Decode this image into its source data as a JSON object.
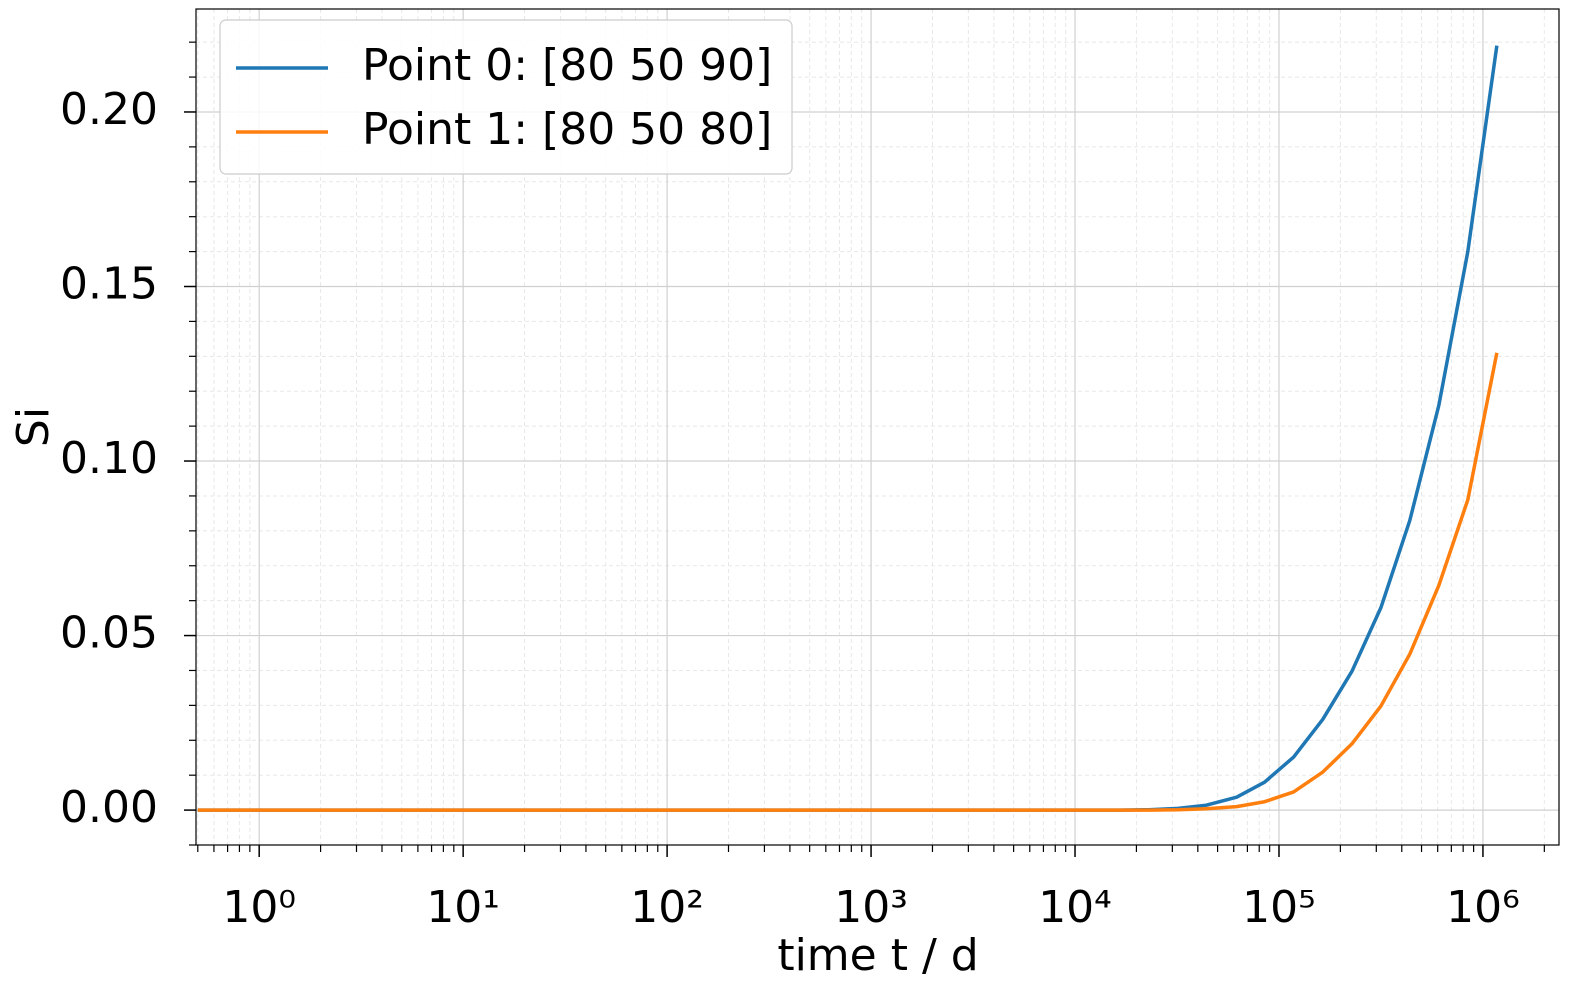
{
  "chart_data": {
    "type": "line",
    "xlabel": "time t / d",
    "ylabel": "Si",
    "x": [
      0.5,
      16600,
      23000,
      32000,
      44000,
      62000,
      85000,
      118000,
      164000,
      228000,
      316000,
      438000,
      608000,
      843000,
      1170000
    ],
    "series": [
      {
        "name": "Point 0: [80 50 90]",
        "color": "#1f77b4",
        "values": [
          0,
          0,
          0.0001,
          0.0005,
          0.0014,
          0.0037,
          0.008,
          0.0152,
          0.026,
          0.0398,
          0.058,
          0.083,
          0.116,
          0.16,
          0.219
        ]
      },
      {
        "name": "Point 1: [80 50 80]",
        "color": "#ff7f0e",
        "values": [
          0,
          0,
          0,
          0.0001,
          0.0004,
          0.001,
          0.0024,
          0.0052,
          0.0109,
          0.019,
          0.0298,
          0.0447,
          0.0644,
          0.0889,
          0.131
        ]
      }
    ],
    "xscale": "log",
    "xlim": [
      0.49,
      2360000
    ],
    "xticks": [
      {
        "value": 1,
        "label": "10⁰"
      },
      {
        "value": 10,
        "label": "10¹"
      },
      {
        "value": 100,
        "label": "10²"
      },
      {
        "value": 1000,
        "label": "10³"
      },
      {
        "value": 10000,
        "label": "10⁴"
      },
      {
        "value": 100000,
        "label": "10⁵"
      },
      {
        "value": 1000000,
        "label": "10⁶"
      }
    ],
    "xminorticks": [
      0.5,
      0.6,
      0.7,
      0.8,
      0.9,
      2,
      3,
      4,
      5,
      6,
      7,
      8,
      9,
      20,
      30,
      40,
      50,
      60,
      70,
      80,
      90,
      200,
      300,
      400,
      500,
      600,
      700,
      800,
      900,
      2000,
      3000,
      4000,
      5000,
      6000,
      7000,
      8000,
      9000,
      20000,
      30000,
      40000,
      50000,
      60000,
      70000,
      80000,
      90000,
      200000,
      300000,
      400000,
      500000,
      600000,
      700000,
      800000,
      900000,
      2000000
    ],
    "ylim": [
      -0.01,
      0.2295
    ],
    "yticks": [
      {
        "value": 0,
        "label": "0.00"
      },
      0.05,
      {
        "value": 0.1,
        "label": "0.10"
      },
      0.15,
      {
        "value": 0.2,
        "label": "0.20"
      }
    ],
    "yminorticks": [
      -0.01,
      0.01,
      0.02,
      0.03,
      0.04,
      0.06,
      0.07,
      0.08,
      0.09,
      0.11,
      0.12,
      0.13,
      0.14,
      0.16,
      0.17,
      0.18,
      0.19,
      0.21,
      0.22
    ],
    "grid": true,
    "minor_grid": true,
    "legend": "upper left"
  }
}
